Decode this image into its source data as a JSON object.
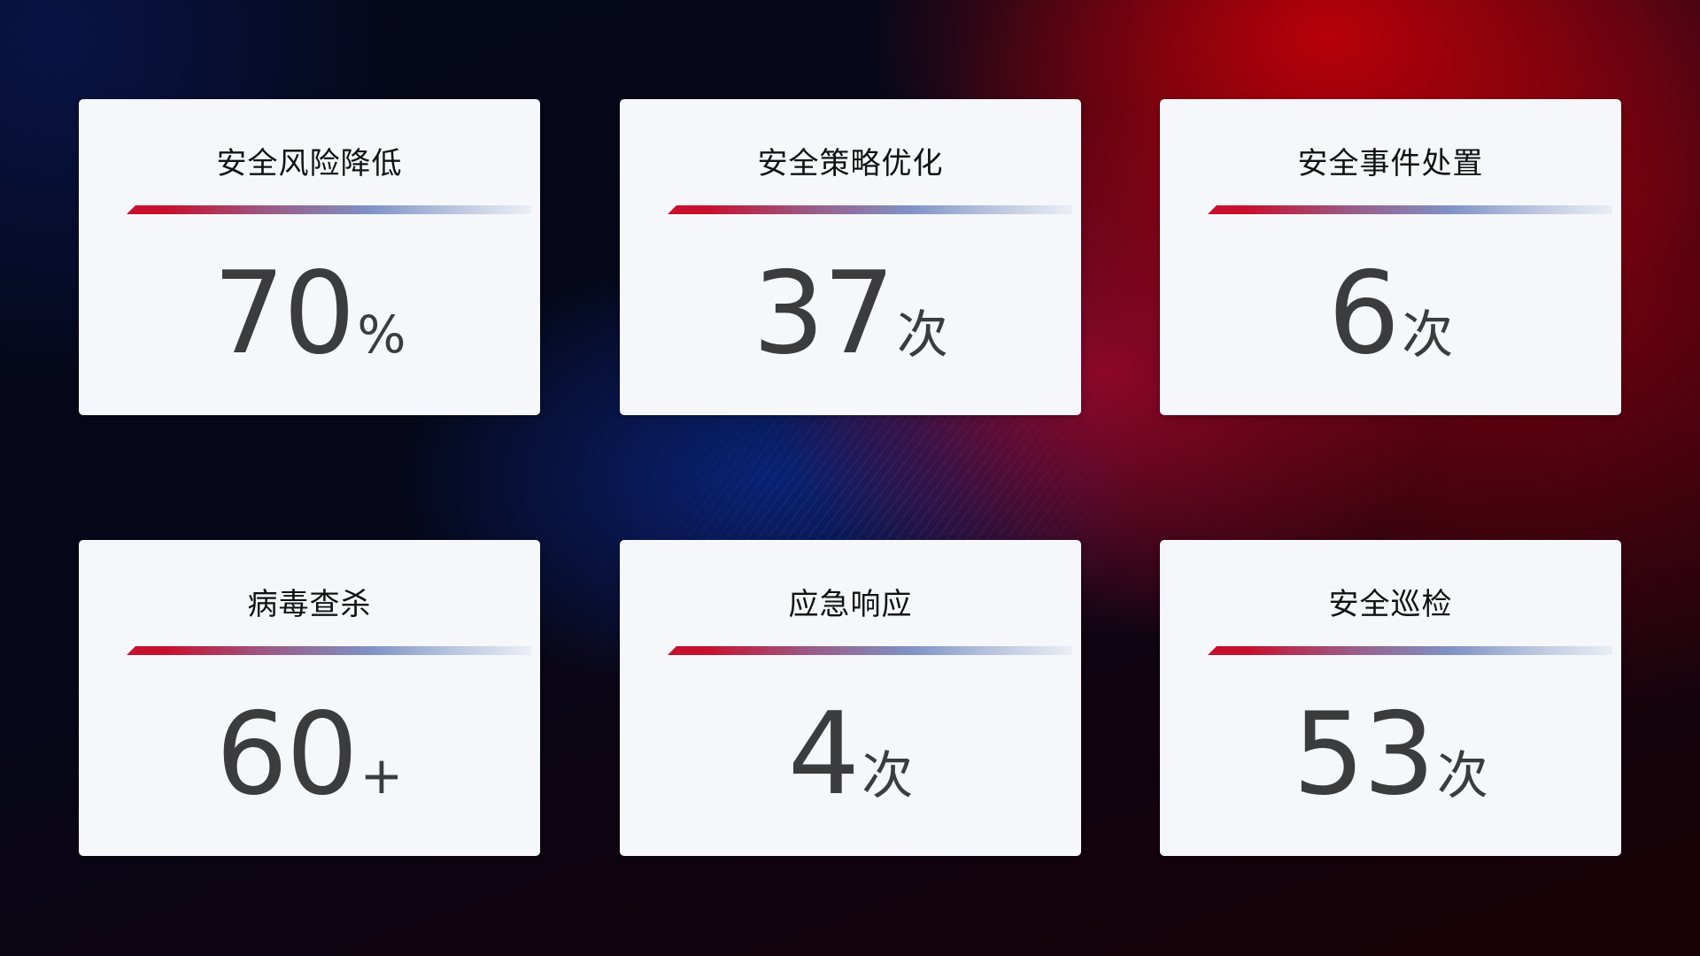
{
  "cards": [
    {
      "title": "安全风险降低",
      "value": "70",
      "unit": "%"
    },
    {
      "title": "安全策略优化",
      "value": "37",
      "unit": "次"
    },
    {
      "title": "安全事件处置",
      "value": "6",
      "unit": "次"
    },
    {
      "title": "病毒查杀",
      "value": "60",
      "unit": "+"
    },
    {
      "title": "应急响应",
      "value": "4",
      "unit": "次"
    },
    {
      "title": "安全巡检",
      "value": "53",
      "unit": "次"
    }
  ],
  "colors": {
    "accent_red": "#c8102e",
    "accent_blue": "#7f92c4",
    "card_bg": "#f5f7fb",
    "value_text": "#3c3c3e"
  }
}
